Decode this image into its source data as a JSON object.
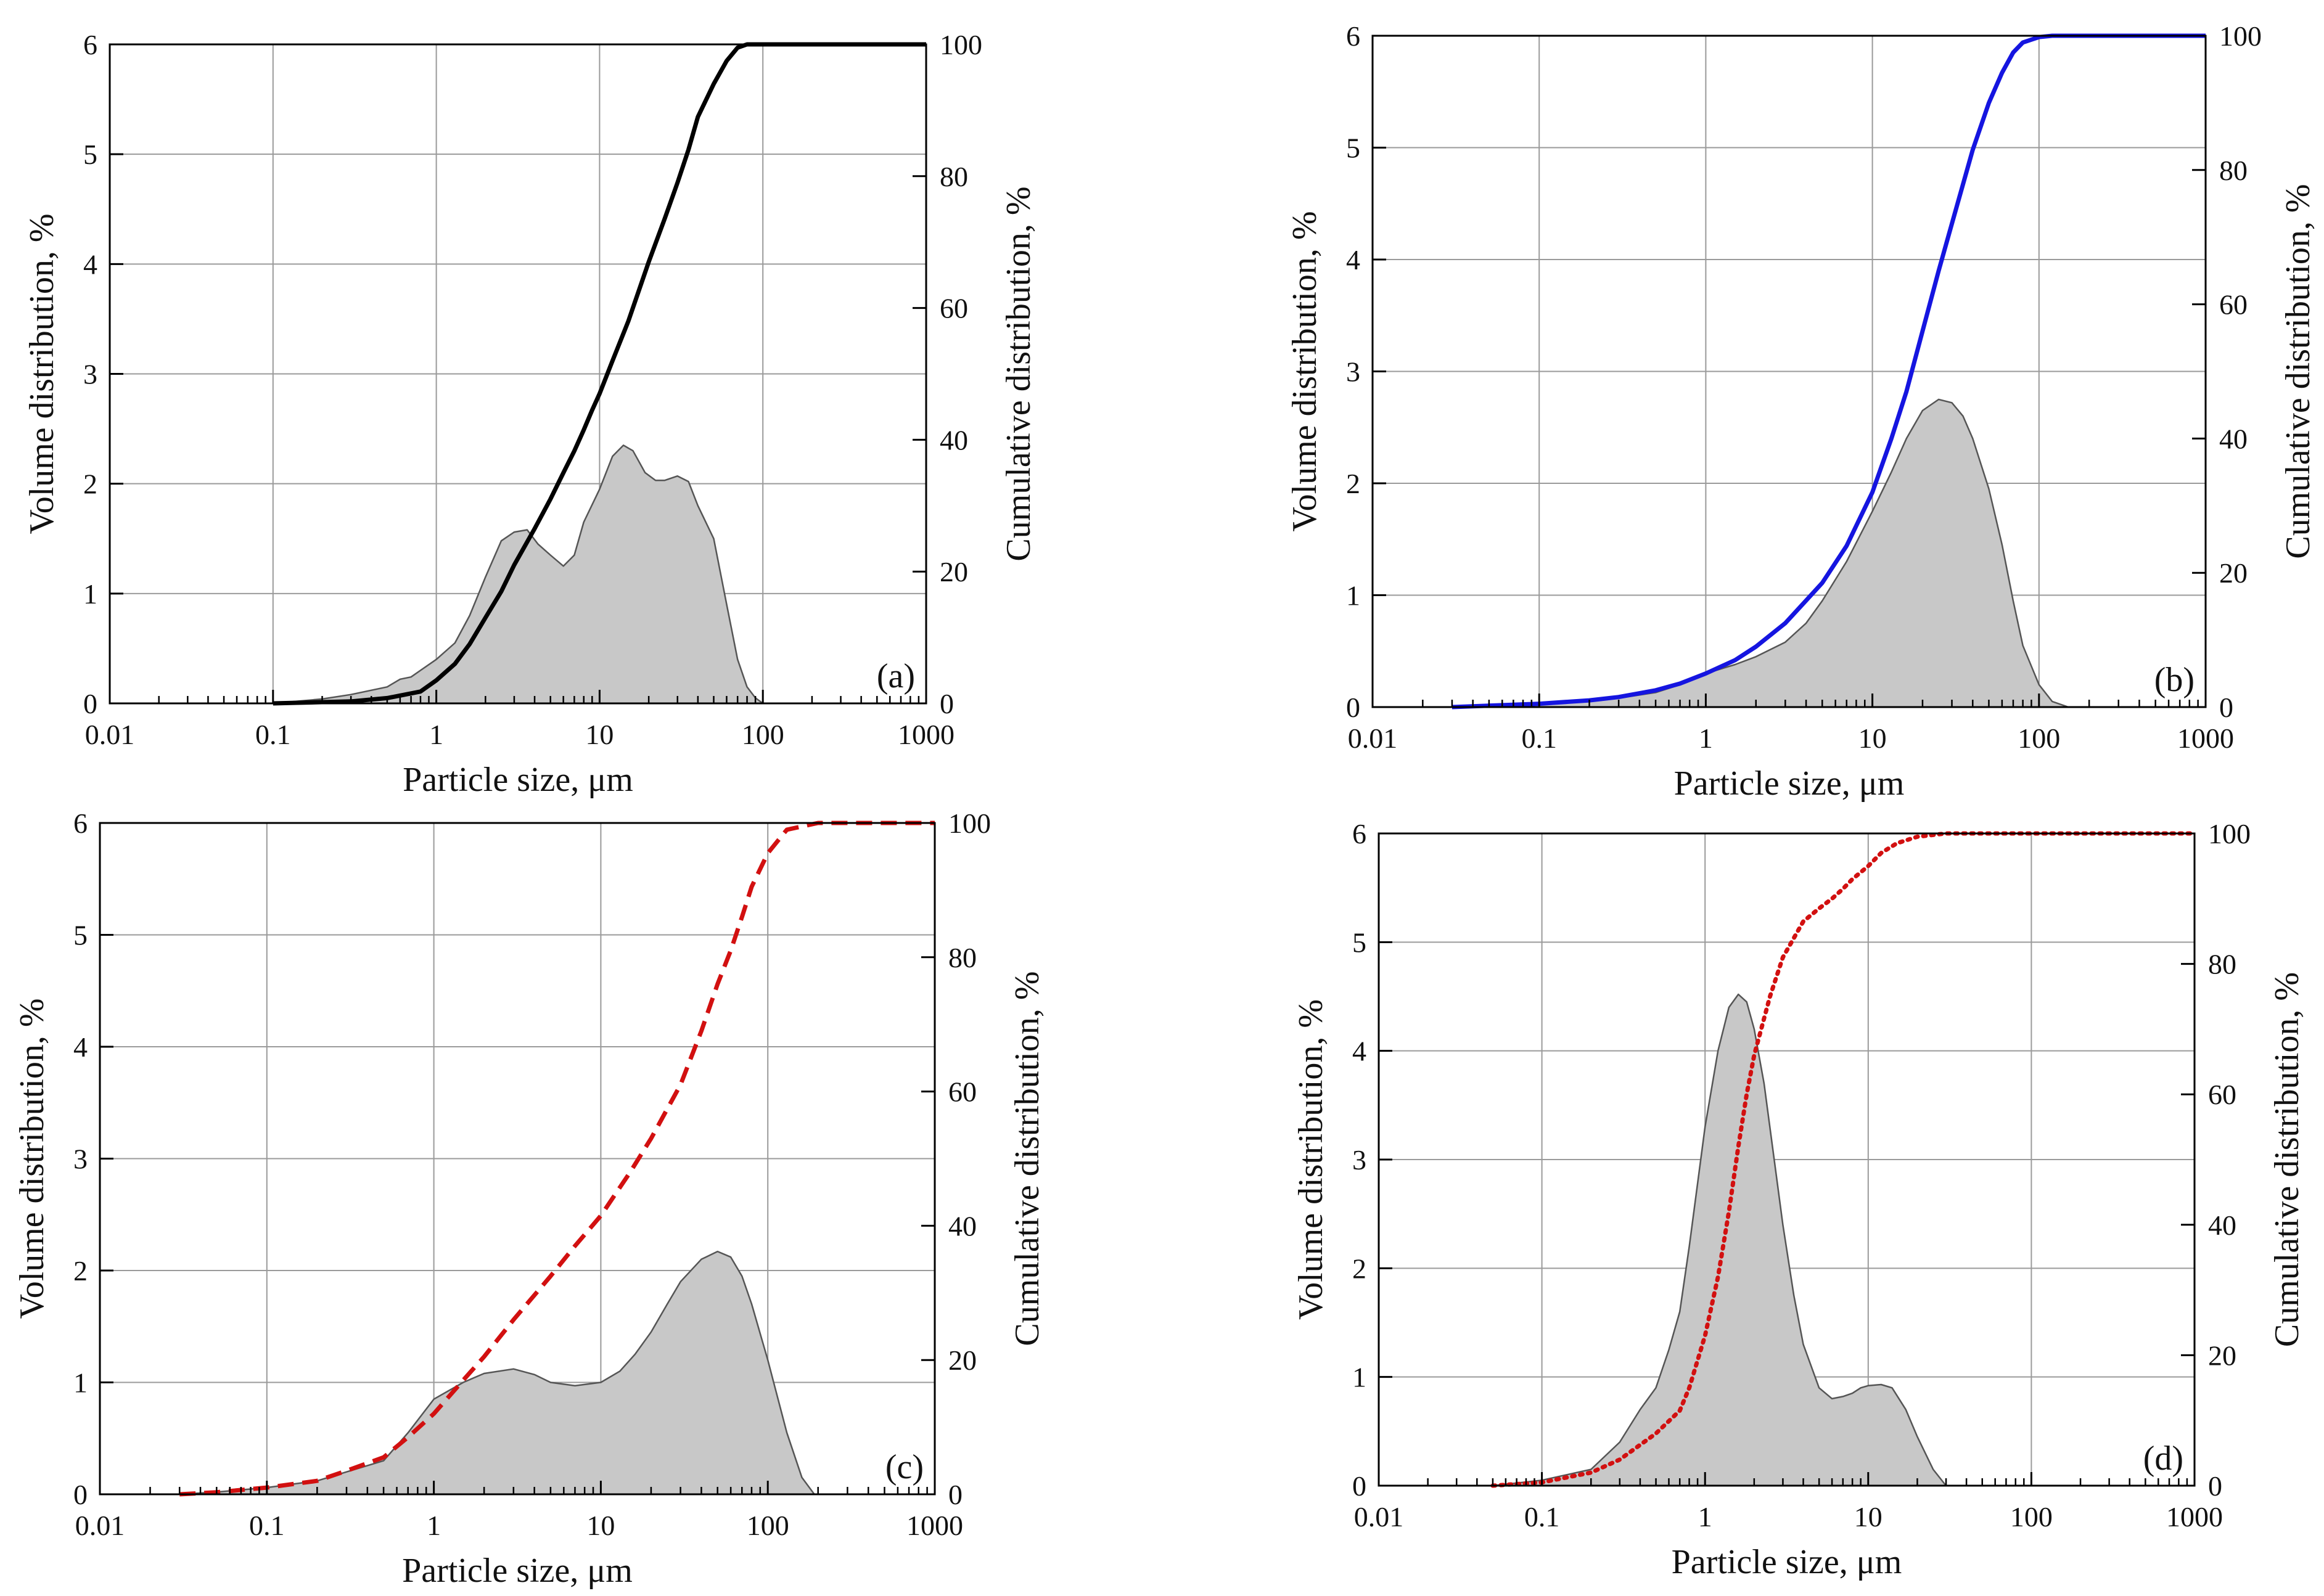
{
  "colors": {
    "area_fill": "#c8c8c8",
    "area_stroke": "#555555",
    "grid": "#9a9a9a",
    "axis": "#000000",
    "black": "#000000",
    "blue": "#1515e0",
    "red": "#d21010"
  },
  "chart_data": [
    {
      "type": "area",
      "panel_label": "(a)",
      "xlabel": "Particle size, μm",
      "ylabel": "Volume distribution, %",
      "y2label": "Cumulative distribution, %",
      "xscale": "log",
      "xlim": [
        0.01,
        1000
      ],
      "ylim": [
        0,
        6
      ],
      "y2lim": [
        0,
        100
      ],
      "xticks": [
        0.01,
        0.1,
        1,
        10,
        100,
        1000
      ],
      "xtick_labels": [
        "0.01",
        "0.1",
        "1",
        "10",
        "100",
        "1000"
      ],
      "yticks": [
        0,
        1,
        2,
        3,
        4,
        5,
        6
      ],
      "ytick_labels": [
        "0",
        "1",
        "2",
        "3",
        "4",
        "5",
        "6"
      ],
      "y2ticks": [
        0,
        20,
        40,
        60,
        80,
        100
      ],
      "y2tick_labels": [
        "0",
        "20",
        "40",
        "60",
        "80",
        "100"
      ],
      "grid": true,
      "cumulative_style": "solid",
      "cumulative_color": "black",
      "volume": {
        "x": [
          0.1,
          0.2,
          0.3,
          0.5,
          0.6,
          0.7,
          0.8,
          1,
          1.3,
          1.6,
          2,
          2.5,
          3,
          3.6,
          4.2,
          5,
          6,
          7,
          8,
          10,
          12,
          14,
          16,
          19,
          22,
          25,
          30,
          35,
          40,
          50,
          60,
          70,
          80,
          90,
          100
        ],
        "y": [
          0,
          0.04,
          0.08,
          0.15,
          0.22,
          0.24,
          0.3,
          0.4,
          0.55,
          0.8,
          1.15,
          1.48,
          1.56,
          1.58,
          1.45,
          1.35,
          1.25,
          1.35,
          1.65,
          1.95,
          2.25,
          2.35,
          2.3,
          2.1,
          2.03,
          2.03,
          2.07,
          2.02,
          1.8,
          1.5,
          0.9,
          0.4,
          0.15,
          0.05,
          0
        ]
      },
      "cumulative": {
        "x": [
          0.1,
          0.3,
          0.5,
          0.8,
          1,
          1.3,
          1.6,
          2,
          2.5,
          3,
          4,
          5,
          6,
          7,
          8,
          9,
          10,
          12,
          15,
          20,
          25,
          30,
          35,
          40,
          50,
          60,
          70,
          80,
          100,
          1000
        ],
        "y": [
          0,
          0.3,
          0.8,
          1.8,
          3.5,
          6,
          9,
          13,
          17,
          21,
          26.5,
          31,
          35,
          38.3,
          41.5,
          44.5,
          47,
          52,
          58,
          67,
          73.5,
          79,
          84,
          89,
          94,
          97.5,
          99.5,
          100,
          100,
          100
        ]
      }
    },
    {
      "type": "area",
      "panel_label": "(b)",
      "xlabel": "Particle size, μm",
      "ylabel": "Volume distribution, %",
      "y2label": "Cumulative distribution, %",
      "xscale": "log",
      "xlim": [
        0.01,
        1000
      ],
      "ylim": [
        0,
        6
      ],
      "y2lim": [
        0,
        100
      ],
      "xticks": [
        0.01,
        0.1,
        1,
        10,
        100,
        1000
      ],
      "xtick_labels": [
        "0.01",
        "0.1",
        "1",
        "10",
        "100",
        "1000"
      ],
      "yticks": [
        0,
        1,
        2,
        3,
        4,
        5,
        6
      ],
      "ytick_labels": [
        "0",
        "1",
        "2",
        "3",
        "4",
        "5",
        "6"
      ],
      "y2ticks": [
        0,
        20,
        40,
        60,
        80,
        100
      ],
      "y2tick_labels": [
        "0",
        "20",
        "40",
        "60",
        "80",
        "100"
      ],
      "grid": true,
      "cumulative_style": "solid",
      "cumulative_color": "blue",
      "volume": {
        "x": [
          0.03,
          0.1,
          0.2,
          0.3,
          0.5,
          0.7,
          1,
          1.5,
          2,
          3,
          4,
          5,
          7,
          10,
          13,
          16,
          20,
          25,
          30,
          35,
          40,
          50,
          60,
          70,
          80,
          100,
          120,
          150
        ],
        "y": [
          0,
          0.02,
          0.05,
          0.08,
          0.13,
          0.2,
          0.3,
          0.38,
          0.45,
          0.58,
          0.75,
          0.95,
          1.3,
          1.75,
          2.1,
          2.4,
          2.65,
          2.75,
          2.72,
          2.6,
          2.4,
          1.95,
          1.45,
          0.95,
          0.55,
          0.2,
          0.05,
          0
        ]
      },
      "cumulative": {
        "x": [
          0.03,
          0.1,
          0.2,
          0.3,
          0.5,
          0.7,
          1,
          1.5,
          2,
          3,
          5,
          7,
          10,
          13,
          16,
          20,
          25,
          30,
          40,
          50,
          60,
          70,
          80,
          100,
          120,
          1000
        ],
        "y": [
          0,
          0.5,
          1,
          1.5,
          2.5,
          3.5,
          5,
          7,
          9,
          12.5,
          18.5,
          24,
          32,
          40,
          47,
          56,
          65,
          72,
          83,
          90,
          94.5,
          97.5,
          99,
          99.8,
          100,
          100
        ]
      }
    },
    {
      "type": "area",
      "panel_label": "(c)",
      "xlabel": "Particle size, μm",
      "ylabel": "Volume distribution, %",
      "y2label": "Cumulative distribution, %",
      "xscale": "log",
      "xlim": [
        0.01,
        1000
      ],
      "ylim": [
        0,
        6
      ],
      "y2lim": [
        0,
        100
      ],
      "xticks": [
        0.01,
        0.1,
        1,
        10,
        100,
        1000
      ],
      "xtick_labels": [
        "0.01",
        "0.1",
        "1",
        "10",
        "100",
        "1000"
      ],
      "yticks": [
        0,
        1,
        2,
        3,
        4,
        5,
        6
      ],
      "ytick_labels": [
        "0",
        "1",
        "2",
        "3",
        "4",
        "5",
        "6"
      ],
      "y2ticks": [
        0,
        20,
        40,
        60,
        80,
        100
      ],
      "y2tick_labels": [
        "0",
        "20",
        "40",
        "60",
        "80",
        "100"
      ],
      "grid": true,
      "cumulative_style": "dashed",
      "cumulative_color": "red",
      "volume": {
        "x": [
          0.03,
          0.05,
          0.1,
          0.2,
          0.3,
          0.5,
          0.7,
          1,
          1.5,
          2,
          3,
          4,
          5,
          7,
          10,
          13,
          16,
          20,
          25,
          30,
          40,
          50,
          60,
          70,
          80,
          100,
          130,
          160,
          190
        ],
        "y": [
          0,
          0.02,
          0.06,
          0.12,
          0.2,
          0.3,
          0.55,
          0.85,
          1.0,
          1.08,
          1.12,
          1.07,
          1.0,
          0.97,
          1.0,
          1.1,
          1.25,
          1.45,
          1.7,
          1.9,
          2.1,
          2.17,
          2.12,
          1.95,
          1.7,
          1.2,
          0.55,
          0.15,
          0
        ]
      },
      "cumulative": {
        "x": [
          0.03,
          0.05,
          0.1,
          0.2,
          0.3,
          0.5,
          0.7,
          1,
          1.5,
          2,
          3,
          5,
          7,
          10,
          15,
          20,
          30,
          40,
          50,
          60,
          70,
          80,
          100,
          130,
          200,
          1000
        ],
        "y": [
          0,
          0.3,
          1,
          2,
          3.5,
          5.5,
          8.5,
          12,
          17,
          20.5,
          26,
          32.5,
          37,
          41.5,
          48,
          53,
          61,
          69,
          76,
          81,
          86,
          90.5,
          95.5,
          99,
          100,
          100
        ]
      }
    },
    {
      "type": "area",
      "panel_label": "(d)",
      "xlabel": "Particle size, μm",
      "ylabel": "Volume distribution, %",
      "y2label": "Cumulative distribution, %",
      "xscale": "log",
      "xlim": [
        0.01,
        1000
      ],
      "ylim": [
        0,
        6
      ],
      "y2lim": [
        0,
        100
      ],
      "xticks": [
        0.01,
        0.1,
        1,
        10,
        100,
        1000
      ],
      "xtick_labels": [
        "0.01",
        "0.1",
        "1",
        "10",
        "100",
        "1000"
      ],
      "yticks": [
        0,
        1,
        2,
        3,
        4,
        5,
        6
      ],
      "ytick_labels": [
        "0",
        "1",
        "2",
        "3",
        "4",
        "5",
        "6"
      ],
      "y2ticks": [
        0,
        20,
        40,
        60,
        80,
        100
      ],
      "y2tick_labels": [
        "0",
        "20",
        "40",
        "60",
        "80",
        "100"
      ],
      "grid": true,
      "cumulative_style": "dotted",
      "cumulative_color": "red",
      "volume": {
        "x": [
          0.05,
          0.1,
          0.2,
          0.3,
          0.4,
          0.5,
          0.6,
          0.7,
          0.8,
          1,
          1.2,
          1.4,
          1.6,
          1.8,
          2,
          2.3,
          2.6,
          3,
          3.5,
          4,
          5,
          6,
          7,
          8,
          9,
          10,
          12,
          14,
          17,
          20,
          25,
          30
        ],
        "y": [
          0,
          0.05,
          0.15,
          0.4,
          0.7,
          0.9,
          1.25,
          1.6,
          2.2,
          3.3,
          4.0,
          4.4,
          4.52,
          4.45,
          4.2,
          3.7,
          3.1,
          2.4,
          1.75,
          1.3,
          0.9,
          0.8,
          0.82,
          0.85,
          0.9,
          0.92,
          0.93,
          0.9,
          0.7,
          0.45,
          0.15,
          0
        ]
      },
      "cumulative": {
        "x": [
          0.05,
          0.1,
          0.2,
          0.3,
          0.5,
          0.7,
          0.8,
          1,
          1.2,
          1.4,
          1.6,
          1.8,
          2,
          2.5,
          3,
          4,
          5,
          6,
          7,
          8,
          10,
          12,
          15,
          20,
          30,
          1000
        ],
        "y": [
          0,
          0.5,
          2,
          4,
          8,
          11.5,
          15,
          23,
          32,
          42,
          52,
          60,
          66,
          75,
          81,
          86.5,
          88.5,
          90,
          91.5,
          93,
          95,
          97,
          98.5,
          99.5,
          100,
          100
        ]
      }
    }
  ]
}
